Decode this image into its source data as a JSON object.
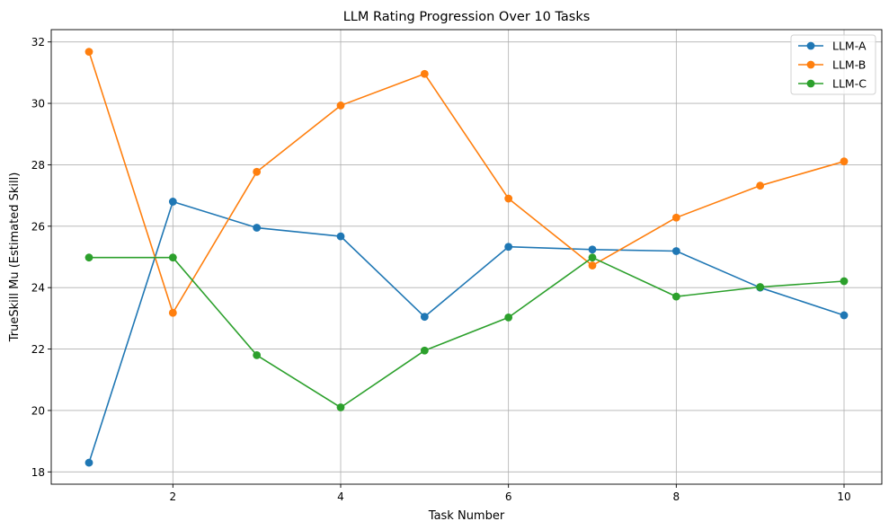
{
  "chart_data": {
    "type": "line",
    "title": "LLM Rating Progression Over 10 Tasks",
    "xlabel": "Task Number",
    "ylabel": "TrueSkill Mu (Estimated Skill)",
    "x": [
      1,
      2,
      3,
      4,
      5,
      6,
      7,
      8,
      9,
      10
    ],
    "xlim": [
      0.55,
      10.45
    ],
    "ylim": [
      17.6,
      32.4
    ],
    "xticks": [
      2,
      4,
      6,
      8,
      10
    ],
    "yticks": [
      18,
      20,
      22,
      24,
      26,
      28,
      30,
      32
    ],
    "xtick_labels": [
      "2",
      "4",
      "6",
      "8",
      "10"
    ],
    "ytick_labels": [
      "18",
      "20",
      "22",
      "24",
      "26",
      "28",
      "30",
      "32"
    ],
    "grid": true,
    "legend_position": "top-right",
    "markers": "circle",
    "series": [
      {
        "name": "LLM-A",
        "color": "#1f77b4",
        "values": [
          18.3,
          26.8,
          25.95,
          25.67,
          23.05,
          25.33,
          25.24,
          25.19,
          24.0,
          23.1
        ]
      },
      {
        "name": "LLM-B",
        "color": "#ff7f0e",
        "values": [
          31.68,
          23.18,
          27.77,
          29.93,
          30.96,
          26.9,
          24.72,
          26.28,
          27.32,
          28.11
        ]
      },
      {
        "name": "LLM-C",
        "color": "#2ca02c",
        "values": [
          24.98,
          24.98,
          21.8,
          20.1,
          21.95,
          23.03,
          24.98,
          23.71,
          24.02,
          24.21
        ]
      }
    ]
  }
}
